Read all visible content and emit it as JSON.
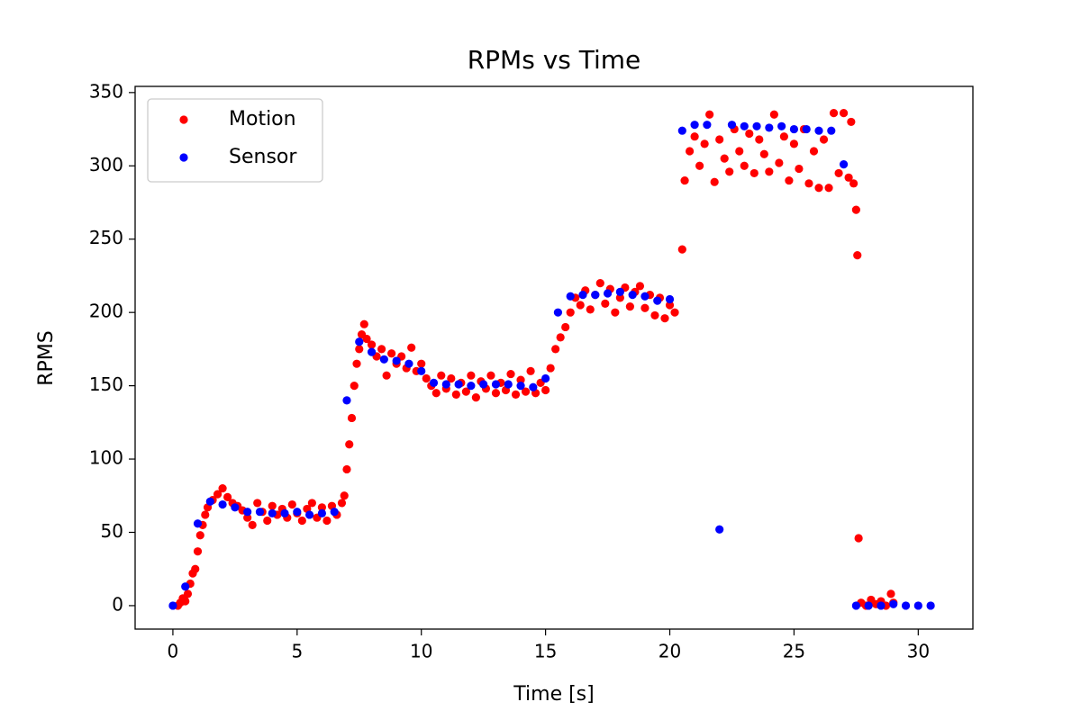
{
  "chart_data": {
    "type": "scatter",
    "title": "RPMs vs Time",
    "xlabel": "Time [s]",
    "ylabel": "RPMS",
    "xlim": [
      -1.52,
      32.2
    ],
    "ylim": [
      -16,
      354.2
    ],
    "xticks": [
      0,
      5,
      10,
      15,
      20,
      25,
      30
    ],
    "yticks": [
      0,
      50,
      100,
      150,
      200,
      250,
      300,
      350
    ],
    "grid": false,
    "legend": "upper left",
    "series": [
      {
        "name": "Motion",
        "color": "#ff0000",
        "x": [
          0.2,
          0.3,
          0.4,
          0.5,
          0.6,
          0.7,
          0.8,
          0.9,
          1.0,
          1.1,
          1.2,
          1.3,
          1.4,
          1.6,
          1.8,
          2.0,
          2.2,
          2.4,
          2.6,
          2.8,
          3.0,
          3.2,
          3.4,
          3.6,
          3.8,
          4.0,
          4.2,
          4.4,
          4.6,
          4.8,
          5.0,
          5.2,
          5.4,
          5.6,
          5.8,
          6.0,
          6.2,
          6.4,
          6.6,
          6.8,
          6.9,
          7.0,
          7.1,
          7.2,
          7.3,
          7.4,
          7.5,
          7.6,
          7.7,
          7.8,
          8.0,
          8.2,
          8.4,
          8.6,
          8.8,
          9.0,
          9.2,
          9.4,
          9.6,
          9.8,
          10.0,
          10.2,
          10.4,
          10.6,
          10.8,
          11.0,
          11.2,
          11.4,
          11.6,
          11.8,
          12.0,
          12.2,
          12.4,
          12.6,
          12.8,
          13.0,
          13.2,
          13.4,
          13.6,
          13.8,
          14.0,
          14.2,
          14.4,
          14.6,
          14.8,
          15.0,
          15.2,
          15.4,
          15.6,
          15.8,
          16.0,
          16.2,
          16.4,
          16.6,
          16.8,
          17.0,
          17.2,
          17.4,
          17.6,
          17.8,
          18.0,
          18.2,
          18.4,
          18.6,
          18.8,
          19.0,
          19.2,
          19.4,
          19.6,
          19.8,
          20.0,
          20.2,
          20.5,
          20.6,
          20.8,
          21.0,
          21.2,
          21.4,
          21.6,
          21.8,
          22.0,
          22.2,
          22.4,
          22.6,
          22.8,
          23.0,
          23.2,
          23.4,
          23.6,
          23.8,
          24.0,
          24.2,
          24.4,
          24.6,
          24.8,
          25.0,
          25.2,
          25.4,
          25.6,
          25.8,
          26.0,
          26.2,
          26.4,
          26.6,
          26.8,
          27.0,
          27.2,
          27.3,
          27.4,
          27.5,
          27.55,
          27.6,
          27.7,
          27.9,
          28.1,
          28.3,
          28.5,
          28.7,
          28.9,
          29.0
        ],
        "values": [
          0,
          2,
          5,
          3,
          8,
          15,
          22,
          25,
          37,
          48,
          55,
          62,
          67,
          72,
          76,
          80,
          74,
          70,
          68,
          65,
          60,
          55,
          70,
          64,
          58,
          68,
          62,
          66,
          60,
          69,
          63,
          58,
          66,
          70,
          60,
          67,
          58,
          68,
          62,
          70,
          75,
          93,
          110,
          128,
          150,
          165,
          175,
          185,
          192,
          182,
          178,
          170,
          175,
          157,
          172,
          165,
          170,
          162,
          176,
          160,
          165,
          155,
          150,
          145,
          157,
          148,
          155,
          144,
          152,
          146,
          157,
          142,
          153,
          148,
          157,
          145,
          152,
          147,
          158,
          144,
          154,
          146,
          160,
          145,
          152,
          147,
          162,
          175,
          183,
          190,
          200,
          210,
          205,
          215,
          202,
          212,
          220,
          206,
          216,
          200,
          210,
          217,
          204,
          214,
          218,
          203,
          212,
          198,
          210,
          196,
          205,
          200,
          243,
          290,
          310,
          320,
          300,
          315,
          335,
          289,
          318,
          305,
          296,
          325,
          310,
          300,
          322,
          295,
          318,
          308,
          296,
          335,
          302,
          320,
          290,
          315,
          298,
          325,
          288,
          310,
          285,
          318,
          285,
          336,
          295,
          336,
          292,
          330,
          288,
          270,
          239,
          46,
          2,
          0,
          4,
          1,
          3,
          0,
          8,
          2
        ]
      },
      {
        "name": "Sensor",
        "color": "#0000ff",
        "x": [
          0,
          0.5,
          1,
          1.5,
          2,
          2.5,
          3,
          3.5,
          4,
          4.5,
          5,
          5.5,
          6,
          6.5,
          7,
          7.5,
          8,
          8.5,
          9,
          9.5,
          10,
          10.5,
          11,
          11.5,
          12,
          12.5,
          13,
          13.5,
          14,
          14.5,
          15,
          15.5,
          16,
          16.5,
          17,
          17.5,
          18,
          18.5,
          19,
          19.5,
          20,
          20.5,
          21,
          21.5,
          22,
          22.5,
          23,
          23.5,
          24,
          24.5,
          25,
          25.5,
          26,
          26.5,
          27,
          27.5,
          28,
          28.5,
          29,
          29.5,
          30,
          30.5
        ],
        "values": [
          0,
          13,
          56,
          71,
          69,
          67,
          64,
          64,
          63,
          63,
          64,
          62,
          63,
          64,
          140,
          180,
          173,
          168,
          167,
          165,
          160,
          152,
          151,
          151,
          150,
          151,
          151,
          151,
          150,
          149,
          155,
          200,
          211,
          212,
          212,
          213,
          214,
          212,
          211,
          208,
          209,
          324,
          328,
          328,
          52,
          328,
          327,
          327,
          326,
          327,
          325,
          325,
          324,
          324,
          301,
          0,
          0,
          0,
          1,
          0,
          0,
          0
        ]
      }
    ]
  }
}
